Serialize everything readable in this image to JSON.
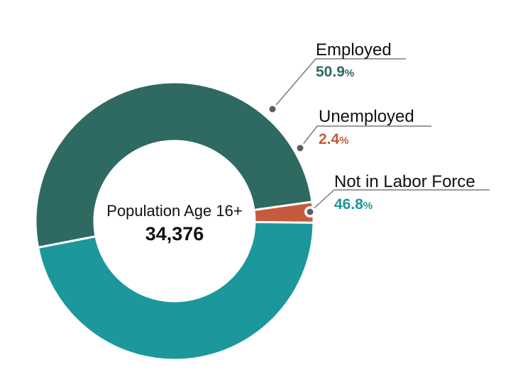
{
  "chart_data": {
    "type": "pie",
    "variant": "donut",
    "center": {
      "title": "Population Age 16+",
      "total": "34,376"
    },
    "slices": [
      {
        "label": "Employed",
        "value": 50.9,
        "display": "50.9",
        "unit": "%",
        "color": "#2e6a62"
      },
      {
        "label": "Unemployed",
        "value": 2.4,
        "display": "2.4",
        "unit": "%",
        "color": "#c65a3c"
      },
      {
        "label": "Not in Labor Force",
        "value": 46.8,
        "display": "46.8",
        "unit": "%",
        "color": "#1c979b"
      }
    ],
    "legend": "callout labels on right"
  }
}
